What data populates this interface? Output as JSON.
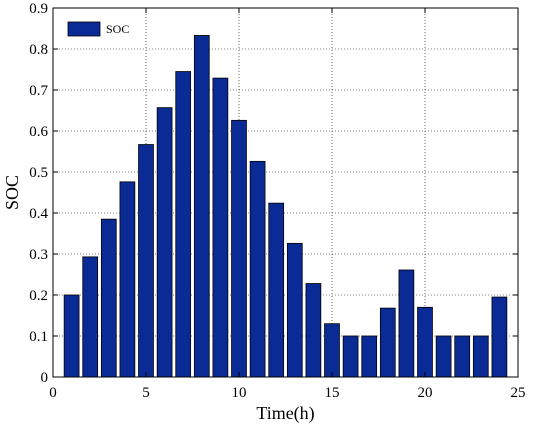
{
  "chart_data": {
    "type": "bar",
    "x": [
      1,
      2,
      3,
      4,
      5,
      6,
      7,
      8,
      9,
      10,
      11,
      12,
      13,
      14,
      15,
      16,
      17,
      18,
      19,
      20,
      21,
      22,
      23,
      24
    ],
    "series": [
      {
        "name": "SOC",
        "values": [
          0.2,
          0.293,
          0.385,
          0.476,
          0.567,
          0.657,
          0.745,
          0.833,
          0.729,
          0.626,
          0.526,
          0.424,
          0.326,
          0.228,
          0.13,
          0.1,
          0.1,
          0.168,
          0.261,
          0.17,
          0.1,
          0.1,
          0.1,
          0.195
        ],
        "color": "#0a2b96"
      }
    ],
    "xlabel": "Time(h)",
    "ylabel": "SOC",
    "xlim": [
      0,
      25
    ],
    "ylim": [
      0,
      0.9
    ],
    "xticks": [
      "0",
      "5",
      "10",
      "15",
      "20",
      "25"
    ],
    "yticks": [
      "0",
      "0.1",
      "0.2",
      "0.3",
      "0.4",
      "0.5",
      "0.6",
      "0.7",
      "0.8",
      "0.9"
    ],
    "grid": true,
    "legend_position": "top-left"
  }
}
